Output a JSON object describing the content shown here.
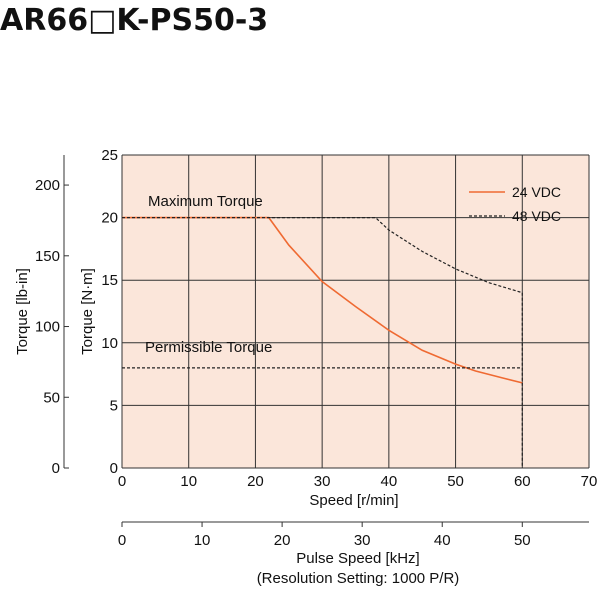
{
  "title": "AR66□K-PS50-3",
  "chart_data": {
    "type": "line",
    "xlabel": "Speed [r/min]",
    "ylabel": "Torque [N·m]",
    "ylabel_secondary": "Torque [lb-in]",
    "xlabel_secondary": "Pulse Speed [kHz]",
    "xlabel_secondary_note": "(Resolution Setting: 1000 P/R)",
    "xlim": [
      0,
      70
    ],
    "ylim": [
      0,
      25
    ],
    "x_ticks": [
      "0",
      "10",
      "20",
      "30",
      "40",
      "50",
      "60",
      "70"
    ],
    "y_ticks": [
      "0",
      "5",
      "10",
      "15",
      "20",
      "25"
    ],
    "y2_ticks": [
      "0",
      "50",
      "100",
      "150",
      "200"
    ],
    "y2_tick_values": [
      0,
      50,
      100,
      150,
      200
    ],
    "y2_scale_lbin_per_nm": 8.85,
    "x2_ticks": [
      "0",
      "10",
      "20",
      "30",
      "40",
      "50"
    ],
    "x2_tick_values": [
      0,
      10,
      20,
      30,
      40,
      50
    ],
    "x2_rpm_per_khz": 1.2,
    "grid": true,
    "background_color": "#fbe6da",
    "legend_position": "top-right",
    "series": [
      {
        "name": "24 VDC",
        "style": "solid",
        "color": "#ef6a32",
        "x": [
          0,
          22,
          25,
          30,
          35,
          40,
          45,
          50,
          53,
          57,
          60
        ],
        "y": [
          20,
          20,
          17.8,
          14.9,
          12.9,
          11.0,
          9.4,
          8.3,
          7.75,
          7.2,
          6.8
        ]
      },
      {
        "name": "48 VDC",
        "style": "dashed",
        "color": "#222222",
        "x": [
          0,
          38,
          40,
          45,
          50,
          55,
          60
        ],
        "y": [
          20,
          20,
          19.0,
          17.3,
          15.9,
          14.8,
          14.0
        ]
      }
    ],
    "permissible_torque": {
      "label": "Permissible Torque",
      "y": 8.0,
      "x_end": 60
    },
    "maximum_torque_label": "Maximum Torque"
  }
}
